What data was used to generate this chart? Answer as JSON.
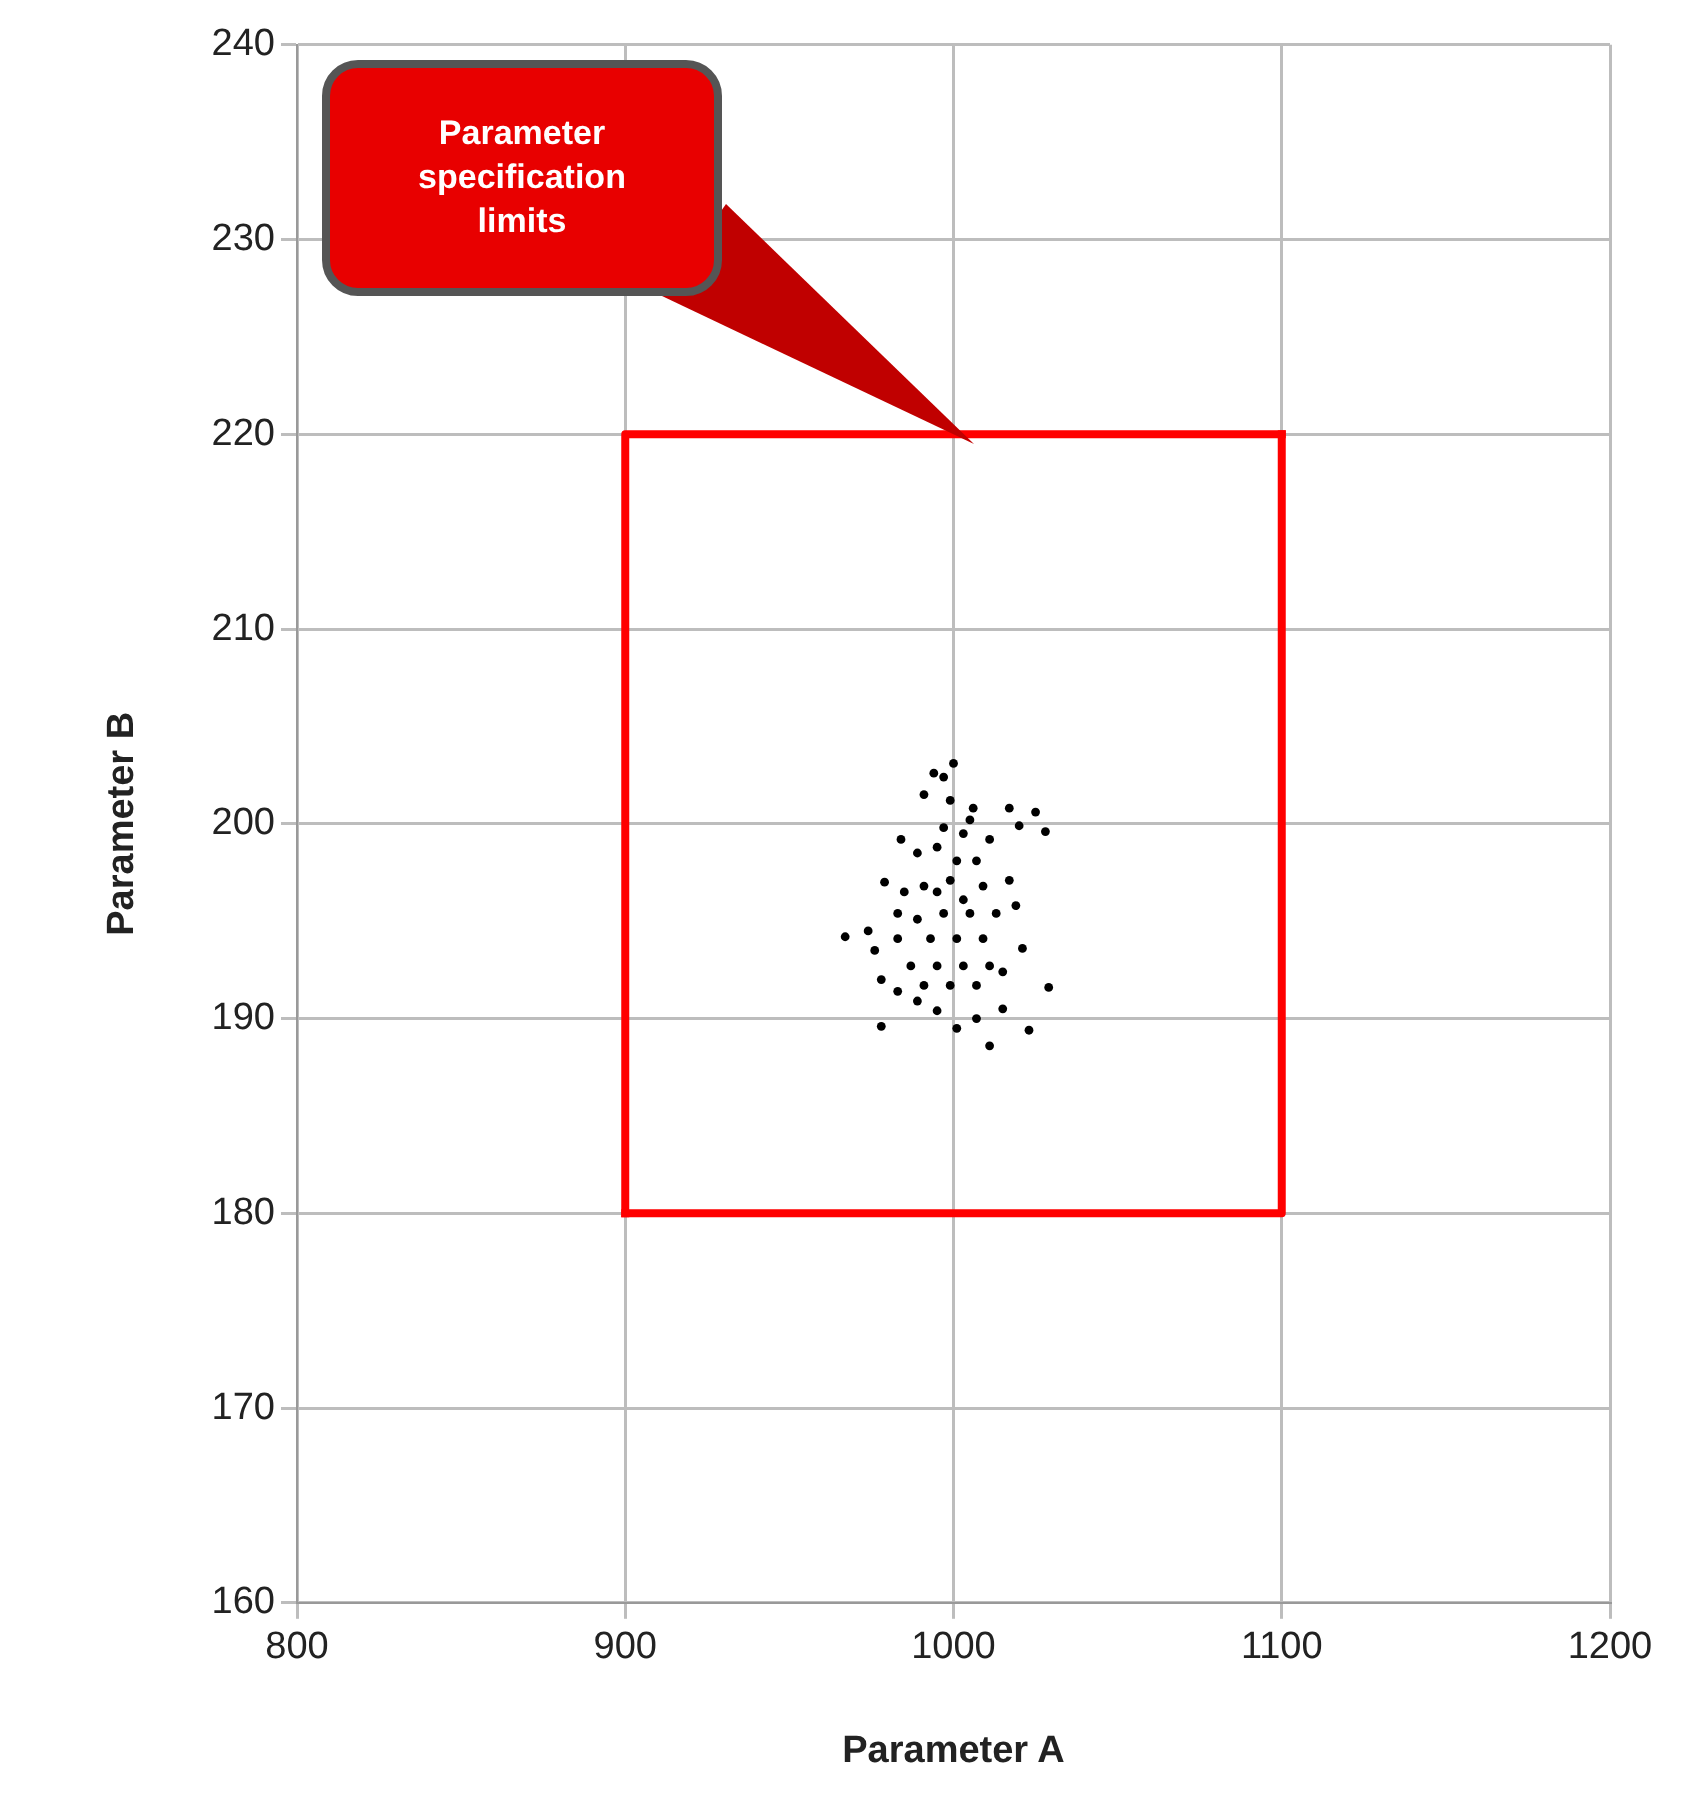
{
  "chart_data": {
    "type": "scatter",
    "xlabel": "Parameter A",
    "ylabel": "Parameter B",
    "xlim": [
      800,
      1200
    ],
    "xticks": [
      800,
      900,
      1000,
      1100,
      1200
    ],
    "ylim": [
      160,
      240
    ],
    "yticks": [
      160,
      170,
      180,
      190,
      200,
      210,
      220,
      230,
      240
    ],
    "grid": true,
    "legend": false,
    "annotations": [
      "Parameter specification limits"
    ],
    "series": [
      {
        "color": "#000000",
        "marker": "circle",
        "x": [
          1000,
          994,
          997,
          991,
          999,
          1006,
          1017,
          1025,
          1020,
          1028,
          967,
          974,
          976,
          978,
          978,
          1029,
          1023,
          1011,
          1001,
          984,
          979,
          1021,
          1019,
          1017,
          1011,
          983,
          989,
          995,
          1007,
          1015,
          989,
          995,
          1003,
          1007,
          985,
          991,
          999,
          1009,
          1013,
          1005,
          997,
          989,
          983,
          993,
          1001,
          1009,
          987,
          995,
          1003,
          1011,
          999,
          1007,
          991,
          1015,
          983,
          1003,
          995,
          1001,
          997,
          1005
        ],
        "values": [
          203.1,
          202.6,
          202.4,
          201.5,
          201.2,
          200.8,
          200.8,
          200.6,
          199.9,
          199.6,
          194.2,
          194.5,
          193.5,
          192.0,
          189.6,
          191.6,
          189.4,
          188.6,
          189.5,
          199.2,
          197.0,
          193.6,
          195.8,
          197.1,
          199.2,
          191.4,
          190.9,
          190.4,
          190.0,
          190.5,
          198.5,
          198.8,
          199.5,
          198.1,
          196.5,
          196.8,
          197.1,
          196.8,
          195.4,
          195.4,
          195.4,
          195.1,
          194.1,
          194.1,
          194.1,
          194.1,
          192.7,
          192.7,
          192.7,
          192.7,
          191.7,
          191.7,
          191.7,
          192.4,
          195.4,
          196.1,
          196.5,
          198.1,
          199.8,
          200.2
        ]
      },
      {
        "type": "line",
        "color": "#ff0000",
        "marker": "none",
        "line_style": "solid",
        "x": [
          900,
          900,
          1100
        ],
        "values": [
          180,
          220,
          220
        ]
      },
      {
        "type": "line",
        "color": "#ff0000",
        "marker": "none",
        "line_style": "solid",
        "x": [
          900,
          1100,
          1100
        ],
        "values": [
          180,
          180,
          220
        ]
      }
    ]
  }
}
